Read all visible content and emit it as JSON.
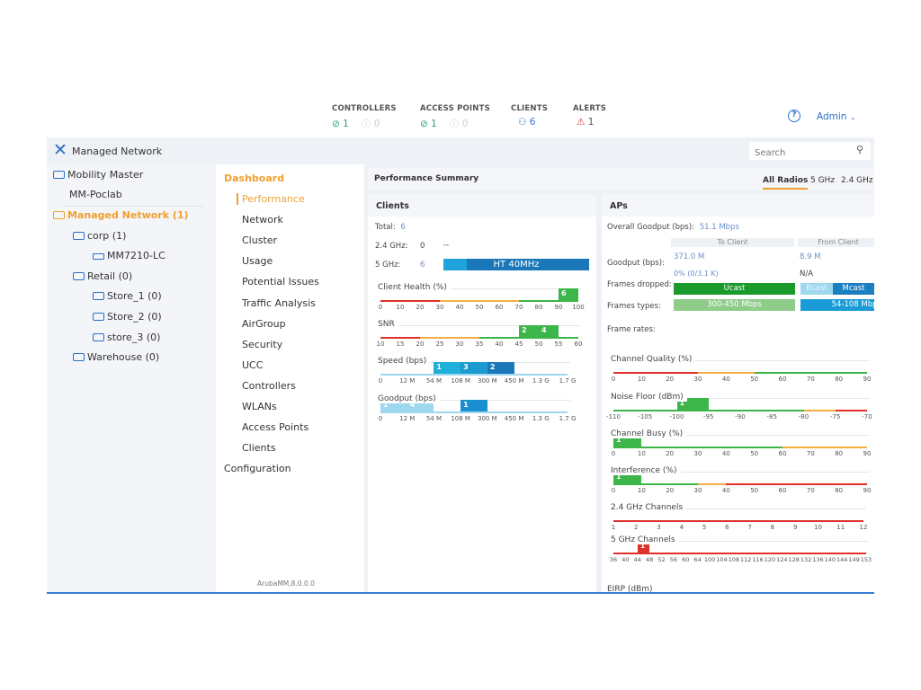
{
  "header": {
    "stats": [
      {
        "title": "CONTROLLERS",
        "up": "1",
        "down": "0"
      },
      {
        "title": "ACCESS POINTS",
        "up": "1",
        "down": "0"
      },
      {
        "title": "CLIENTS",
        "value": "6"
      },
      {
        "title": "ALERTS",
        "value": "1"
      }
    ],
    "help_icon": "question-circle-icon",
    "user": "Admin"
  },
  "topbar": {
    "title": "Managed Network",
    "search_placeholder": "Search"
  },
  "tree": [
    {
      "label": "Mobility Master",
      "folder": true,
      "active": false
    },
    {
      "label": "MM-Poclab",
      "folder": false
    },
    {
      "label": "Managed Network (1)",
      "folder": true,
      "active": true
    },
    {
      "label": "corp (1)",
      "folder": true
    },
    {
      "label": "MM7210-LC",
      "folder": false,
      "device": true
    },
    {
      "label": "Retail (0)",
      "folder": true
    },
    {
      "label": "Store_1 (0)",
      "folder": true
    },
    {
      "label": "Store_2 (0)",
      "folder": true
    },
    {
      "label": "store_3 (0)",
      "folder": true
    },
    {
      "label": "Warehouse (0)",
      "folder": true
    }
  ],
  "nav": {
    "section": "Dashboard",
    "items": [
      "Performance",
      "Network",
      "Cluster",
      "Usage",
      "Potential Issues",
      "Traffic Analysis",
      "AirGroup",
      "Security",
      "UCC",
      "Controllers",
      "WLANs",
      "Access Points",
      "Clients"
    ],
    "active": "Performance",
    "configuration": "Configuration",
    "version": "ArubaMM,8.0.0.0"
  },
  "summary": {
    "title": "Performance Summary",
    "tabs": [
      "All Radios",
      "5 GHz",
      "2.4 GHz"
    ],
    "active_tab": "All Radios"
  },
  "clients": {
    "title": "Clients",
    "total_label": "Total:",
    "total": "6",
    "g24_label": "2.4 GHz:",
    "g24": "0",
    "g24_bar": "--",
    "g5_label": "5 GHz:",
    "g5": "6",
    "g5_bar": "HT 40MHz"
  },
  "aps": {
    "title": "APs",
    "overall_label": "Overall Goodput (bps):",
    "overall": "51.1 Mbps",
    "to_client": "To Client",
    "from_client": "From Client",
    "goodput_label": "Goodput (bps):",
    "goodput_to": "371.0 M",
    "goodput_from": "8.9 M",
    "dropped_label": "Frames dropped:",
    "dropped_to": "0% (0/3.1 K)",
    "dropped_from": "N/A",
    "types_label": "Frames types:",
    "ucast": "Ucast",
    "bcast": "Bcast",
    "mcast": "Mcast",
    "rates_label": "Frame rates:",
    "rate_to": "300-450 Mbps",
    "rate_from": "54-108 Mbps",
    "eirp_label": "EIRP (dBm)"
  },
  "colors": {
    "accent": "#f0a030",
    "blue": "#2a6fc9",
    "green": "#3cb54a",
    "red": "#e0302a",
    "orange": "#f0b040"
  },
  "charts": [
    {
      "id": "client-health",
      "title": "Client Health (%)",
      "ticks": [
        "0",
        "10",
        "20",
        "30",
        "40",
        "50",
        "60",
        "70",
        "80",
        "90",
        "100"
      ],
      "ranges": [
        {
          "from": 0,
          "to": 3,
          "color": "red"
        },
        {
          "from": 3,
          "to": 7,
          "color": "orange"
        },
        {
          "from": 7,
          "to": 10,
          "color": "green"
        }
      ],
      "bins": [
        {
          "from": "90",
          "to": "100",
          "count": "6",
          "color": "#3cb54a"
        }
      ]
    },
    {
      "id": "snr",
      "title": "SNR",
      "ticks": [
        "10",
        "15",
        "20",
        "25",
        "30",
        "35",
        "40",
        "45",
        "50",
        "55",
        "60"
      ],
      "ranges": [
        {
          "from": 0,
          "to": 2,
          "color": "red"
        },
        {
          "from": 2,
          "to": 5,
          "color": "orange"
        },
        {
          "from": 5,
          "to": 10,
          "color": "green"
        }
      ],
      "bins": [
        {
          "from": "45",
          "to": "50",
          "count": "2",
          "color": "#3cb54a"
        },
        {
          "from": "50",
          "to": "55",
          "count": "4",
          "color": "#3cb54a"
        }
      ]
    },
    {
      "id": "speed",
      "title": "Speed (bps)",
      "ticks": [
        "0",
        "12 M",
        "54 M",
        "108 M",
        "300 M",
        "450 M",
        "1.3 G",
        "1.7 G"
      ],
      "ranges": [
        {
          "from": 0,
          "to": 7,
          "color": "lightblue"
        }
      ],
      "bins": [
        {
          "from": "54 M",
          "to": "108 M",
          "count": "1",
          "color": "#1fb0d8"
        },
        {
          "from": "108 M",
          "to": "300 M",
          "count": "3",
          "color": "#1b9bd0"
        },
        {
          "from": "300 M",
          "to": "450 M",
          "count": "2",
          "color": "#1a78b8"
        }
      ]
    },
    {
      "id": "goodput",
      "title": "Goodput (bps)",
      "ticks": [
        "0",
        "12 M",
        "54 M",
        "108 M",
        "300 M",
        "450 M",
        "1.3 G",
        "1.7 G"
      ],
      "ranges": [
        {
          "from": 0,
          "to": 7,
          "color": "lightblue"
        }
      ],
      "bins": [
        {
          "from": "0",
          "to": "12 M",
          "count": "1",
          "color": "#9dd8ef"
        },
        {
          "from": "12 M",
          "to": "54 M",
          "count": "4",
          "color": "#9dd8ef"
        },
        {
          "from": "108 M",
          "to": "300 M",
          "count": "1",
          "color": "#1a8fd0"
        }
      ]
    },
    {
      "id": "channel-quality",
      "title": "Channel Quality (%)",
      "ticks": [
        "0",
        "10",
        "20",
        "30",
        "40",
        "50",
        "60",
        "70",
        "80",
        "90"
      ],
      "ranges": [
        {
          "from": 0,
          "to": 3,
          "color": "red"
        },
        {
          "from": 3,
          "to": 5,
          "color": "orange"
        },
        {
          "from": 5,
          "to": 9,
          "color": "green"
        }
      ],
      "bins": []
    },
    {
      "id": "noise-floor",
      "title": "Noise Floor (dBm)",
      "ticks": [
        "-110",
        "-105",
        "-100",
        "-95",
        "-90",
        "-85",
        "-80",
        "-75",
        "-70"
      ],
      "ranges": [
        {
          "from": 0,
          "to": 6,
          "color": "green"
        },
        {
          "from": 6,
          "to": 7,
          "color": "orange"
        },
        {
          "from": 7,
          "to": 8,
          "color": "red"
        }
      ],
      "bins": [
        {
          "from": "-100",
          "to": "-95",
          "count": "1",
          "color": "#3cb54a"
        }
      ]
    },
    {
      "id": "channel-busy",
      "title": "Channel Busy (%)",
      "ticks": [
        "0",
        "10",
        "20",
        "30",
        "40",
        "50",
        "60",
        "70",
        "80",
        "90"
      ],
      "ranges": [
        {
          "from": 0,
          "to": 6,
          "color": "green"
        },
        {
          "from": 6,
          "to": 9,
          "color": "orange"
        }
      ],
      "bins": [
        {
          "from": "0",
          "to": "10",
          "count": "1",
          "color": "#3cb54a"
        }
      ]
    },
    {
      "id": "interference",
      "title": "Interference (%)",
      "ticks": [
        "0",
        "10",
        "20",
        "30",
        "40",
        "50",
        "60",
        "70",
        "80",
        "90"
      ],
      "ranges": [
        {
          "from": 0,
          "to": 3,
          "color": "green"
        },
        {
          "from": 3,
          "to": 4,
          "color": "orange"
        },
        {
          "from": 4,
          "to": 9,
          "color": "red"
        }
      ],
      "bins": [
        {
          "from": "0",
          "to": "10",
          "count": "1",
          "color": "#3cb54a"
        }
      ]
    },
    {
      "id": "channels-24",
      "title": "2.4 GHz Channels",
      "ticks": [
        "1",
        "2",
        "3",
        "4",
        "5",
        "6",
        "7",
        "8",
        "9",
        "10",
        "11",
        "12"
      ],
      "ranges": [
        {
          "from": 0,
          "to": 11,
          "color": "red"
        }
      ],
      "bins": []
    },
    {
      "id": "channels-5",
      "title": "5 GHz Channels",
      "ticks": [
        "36",
        "40",
        "44",
        "48",
        "52",
        "56",
        "60",
        "64",
        "100",
        "104",
        "108",
        "112",
        "116",
        "120",
        "124",
        "128",
        "132",
        "136",
        "140",
        "144",
        "149",
        "153"
      ],
      "ranges": [
        {
          "from": 0,
          "to": 21,
          "color": "red"
        }
      ],
      "bins": [
        {
          "from": "44",
          "to": "48",
          "count": "1",
          "color": "#e0302a"
        }
      ]
    }
  ]
}
